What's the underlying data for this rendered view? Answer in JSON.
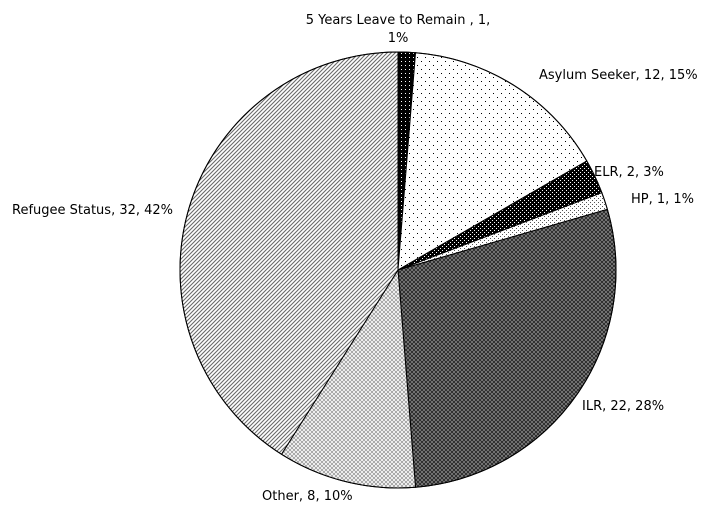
{
  "chart_data": {
    "type": "pie",
    "title": "",
    "start_angle_deg": 0,
    "direction": "clockwise",
    "slices": [
      {
        "name": "5 Years Leave to Remain ",
        "value": 1,
        "percent": "1%",
        "label_lines": [
          "5 Years Leave to Remain , 1,",
          "1%"
        ],
        "pattern": "solid-black"
      },
      {
        "name": "Asylum Seeker",
        "value": 12,
        "percent": "15%",
        "label_lines": [
          "Asylum Seeker, 12, 15%"
        ],
        "pattern": "sparse-dots"
      },
      {
        "name": "ELR",
        "value": 2,
        "percent": "3%",
        "label_lines": [
          "ELR, 2, 3%"
        ],
        "pattern": "dense-checker"
      },
      {
        "name": "HP",
        "value": 1,
        "percent": "1%",
        "label_lines": [
          "HP, 1, 1%"
        ],
        "pattern": "fine-dots"
      },
      {
        "name": "ILR",
        "value": 22,
        "percent": "28%",
        "label_lines": [
          "ILR, 22, 28%"
        ],
        "pattern": "dark-crosshatch"
      },
      {
        "name": "Other",
        "value": 8,
        "percent": "10%",
        "label_lines": [
          "Other, 8, 10%"
        ],
        "pattern": "light-crosshatch"
      },
      {
        "name": "Refugee Status",
        "value": 32,
        "percent": "42%",
        "label_lines": [
          "Refugee Status, 32, 42%"
        ],
        "pattern": "diagonal-stripes"
      }
    ]
  }
}
